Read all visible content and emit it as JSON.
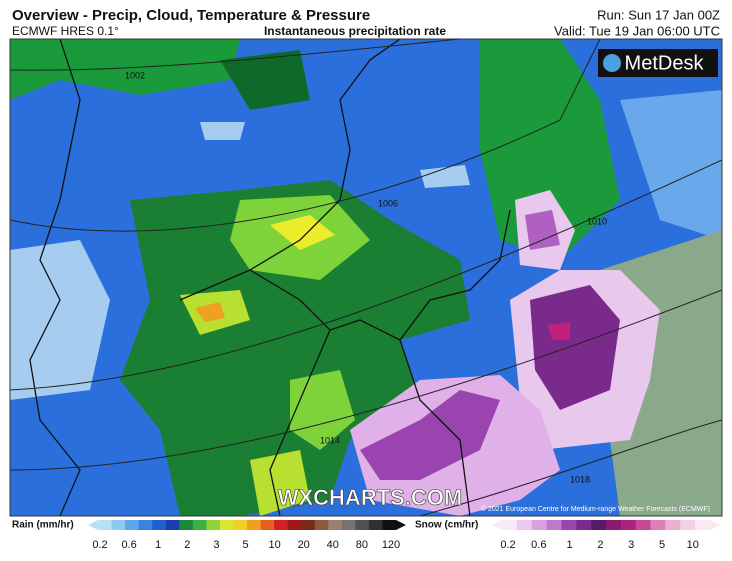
{
  "header": {
    "title": "Overview - Precip, Cloud, Temperature & Pressure",
    "model": "ECMWF HRES 0.1°",
    "field": "Instantaneous precipitation rate",
    "run": "Run: Sun 17 Jan 00Z",
    "valid": "Valid: Tue 19 Jan 06:00 UTC"
  },
  "map": {
    "logo": "MetDesk",
    "watermark": "WXCHARTS.COM",
    "credit": "© 2021 European Centre for Medium-range Weather Forecasts (ECMWF)",
    "isobars": [
      "1002",
      "1006",
      "1010",
      "1014",
      "1018"
    ]
  },
  "legend": {
    "rain": {
      "title": "Rain (mm/hr)",
      "labels": [
        "0.2",
        "0.6",
        "1",
        "2",
        "3",
        "5",
        "10",
        "20",
        "40",
        "80",
        "120"
      ]
    },
    "snow": {
      "title": "Snow (cm/hr)",
      "labels": [
        "0.2",
        "0.6",
        "1",
        "2",
        "3",
        "5",
        "10"
      ]
    }
  }
}
